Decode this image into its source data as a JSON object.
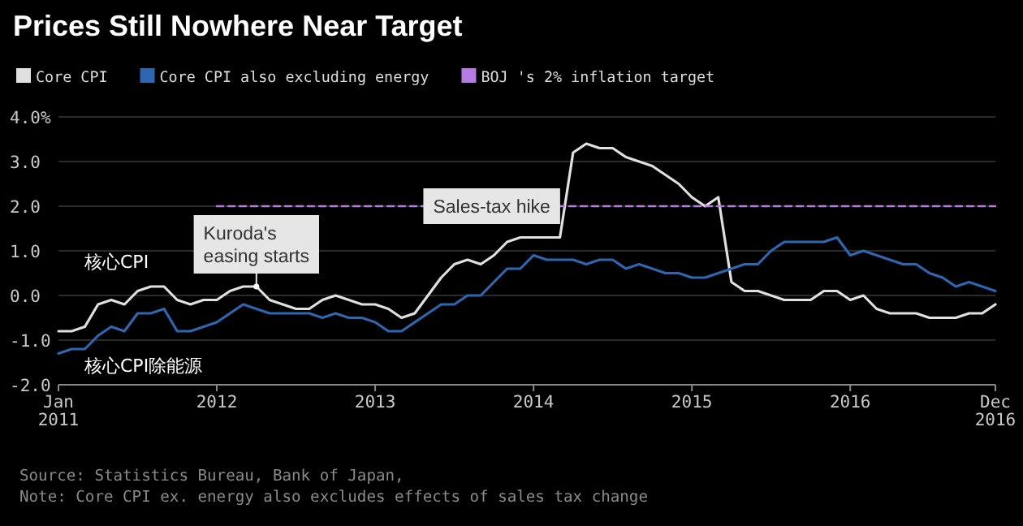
{
  "chart_data": {
    "type": "line",
    "title": "Prices Still Nowhere Near Target",
    "x": [
      "2011-01",
      "2011-02",
      "2011-03",
      "2011-04",
      "2011-05",
      "2011-06",
      "2011-07",
      "2011-08",
      "2011-09",
      "2011-10",
      "2011-11",
      "2011-12",
      "2012-01",
      "2012-02",
      "2012-03",
      "2012-04",
      "2012-05",
      "2012-06",
      "2012-07",
      "2012-08",
      "2012-09",
      "2012-10",
      "2012-11",
      "2012-12",
      "2013-01",
      "2013-02",
      "2013-03",
      "2013-04",
      "2013-05",
      "2013-06",
      "2013-07",
      "2013-08",
      "2013-09",
      "2013-10",
      "2013-11",
      "2013-12",
      "2014-01",
      "2014-02",
      "2014-03",
      "2014-04",
      "2014-05",
      "2014-06",
      "2014-07",
      "2014-08",
      "2014-09",
      "2014-10",
      "2014-11",
      "2014-12",
      "2015-01",
      "2015-02",
      "2015-03",
      "2015-04",
      "2015-05",
      "2015-06",
      "2015-07",
      "2015-08",
      "2015-09",
      "2015-10",
      "2015-11",
      "2015-12",
      "2016-01",
      "2016-02",
      "2016-03",
      "2016-04",
      "2016-05",
      "2016-06",
      "2016-07",
      "2016-08",
      "2016-09",
      "2016-10",
      "2016-11",
      "2016-12"
    ],
    "series": [
      {
        "name": "Core CPI",
        "color": "#e0e0e0",
        "values": [
          -0.8,
          -0.8,
          -0.7,
          -0.2,
          -0.1,
          -0.2,
          0.1,
          0.2,
          0.2,
          -0.1,
          -0.2,
          -0.1,
          -0.1,
          0.1,
          0.2,
          0.2,
          -0.1,
          -0.2,
          -0.3,
          -0.3,
          -0.1,
          0.0,
          -0.1,
          -0.2,
          -0.2,
          -0.3,
          -0.5,
          -0.4,
          0.0,
          0.4,
          0.7,
          0.8,
          0.7,
          0.9,
          1.2,
          1.3,
          1.3,
          1.3,
          1.3,
          3.2,
          3.4,
          3.3,
          3.3,
          3.1,
          3.0,
          2.9,
          2.7,
          2.5,
          2.2,
          2.0,
          2.2,
          0.3,
          0.1,
          0.1,
          0.0,
          -0.1,
          -0.1,
          -0.1,
          0.1,
          0.1,
          -0.1,
          0.0,
          -0.3,
          -0.4,
          -0.4,
          -0.4,
          -0.5,
          -0.5,
          -0.5,
          -0.4,
          -0.4,
          -0.2
        ]
      },
      {
        "name": "Core CPI also excluding energy",
        "color": "#2f66b0",
        "values": [
          -1.3,
          -1.2,
          -1.2,
          -0.9,
          -0.7,
          -0.8,
          -0.4,
          -0.4,
          -0.3,
          -0.8,
          -0.8,
          -0.7,
          -0.6,
          -0.4,
          -0.2,
          -0.3,
          -0.4,
          -0.4,
          -0.4,
          -0.4,
          -0.5,
          -0.4,
          -0.5,
          -0.5,
          -0.6,
          -0.8,
          -0.8,
          -0.6,
          -0.4,
          -0.2,
          -0.2,
          0.0,
          0.0,
          0.3,
          0.6,
          0.6,
          0.9,
          0.8,
          0.8,
          0.8,
          0.7,
          0.8,
          0.8,
          0.6,
          0.7,
          0.6,
          0.5,
          0.5,
          0.4,
          0.4,
          0.5,
          0.6,
          0.7,
          0.7,
          1.0,
          1.2,
          1.2,
          1.2,
          1.2,
          1.3,
          0.9,
          1.0,
          0.9,
          0.8,
          0.7,
          0.7,
          0.5,
          0.4,
          0.2,
          0.3,
          0.2,
          0.1
        ]
      },
      {
        "name": "BOJ 's 2% inflation target",
        "color": "#b57be0",
        "line_style": "dashed",
        "x": [
          "2012-01",
          "2016-12"
        ],
        "values": [
          2.0,
          2.0
        ]
      }
    ],
    "xlim": [
      "2011-01",
      "2016-12"
    ],
    "xticks": [
      {
        "value": "2011-01",
        "label": "Jan\n2011"
      },
      {
        "value": "2012-01",
        "label": "2012"
      },
      {
        "value": "2013-01",
        "label": "2013"
      },
      {
        "value": "2014-01",
        "label": "2014"
      },
      {
        "value": "2015-01",
        "label": "2015"
      },
      {
        "value": "2016-01",
        "label": "2016"
      },
      {
        "value": "2016-12",
        "label": "Dec\n2016"
      }
    ],
    "ylim": [
      -2,
      4
    ],
    "yticks": [
      {
        "value": -2,
        "label": "-2.0"
      },
      {
        "value": -1,
        "label": "-1.0"
      },
      {
        "value": 0,
        "label": "0.0"
      },
      {
        "value": 1,
        "label": "1.0"
      },
      {
        "value": 2,
        "label": "2.0"
      },
      {
        "value": 3,
        "label": "3.0"
      },
      {
        "value": 4,
        "label": "4.0%"
      }
    ],
    "grid": "y",
    "legend": "top",
    "annotations": [
      {
        "text": "Kuroda's easing starts",
        "x": "2012-04",
        "y": 0.2
      },
      {
        "text": "Sales-tax hike",
        "x": "2014-04",
        "y": 2.0
      },
      "核心CPI",
      "核心CPI除能源",
      "Source: Statistics Bureau, Bank of Japan,",
      "Note: Core CPI ex. energy also excludes effects of sales tax change"
    ]
  }
}
